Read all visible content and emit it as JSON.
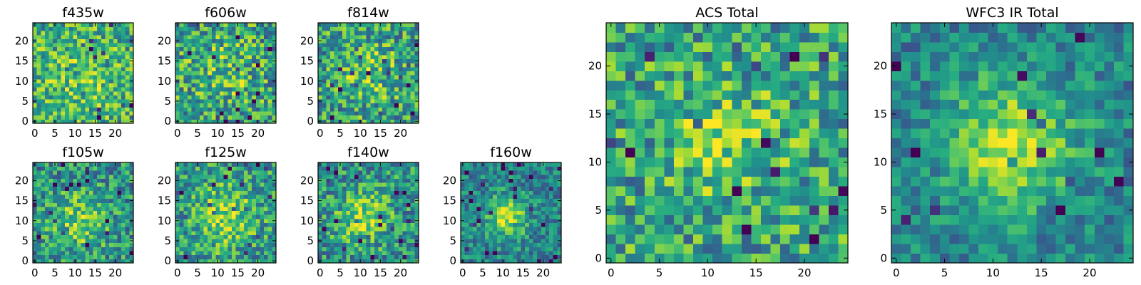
{
  "chart_data": {
    "type": "heatmap",
    "colormap": "viridis",
    "colors": {
      "low": "#440154",
      "mid": "#21918c",
      "high": "#fde725"
    },
    "panels": [
      {
        "title": "f435w",
        "size": "small",
        "grid": [
          25,
          25
        ],
        "xlim": [
          0,
          24
        ],
        "ylim": [
          0,
          24
        ],
        "xticks": [
          0,
          5,
          10,
          15,
          20
        ],
        "yticks": [
          0,
          5,
          10,
          15,
          20
        ],
        "blob": {
          "cx": 12,
          "cy": 11,
          "sigma": 7.0,
          "amplitude": 0.12
        },
        "base": 0.62,
        "noise": 0.3,
        "seed": 435
      },
      {
        "title": "f606w",
        "size": "small",
        "grid": [
          25,
          25
        ],
        "xlim": [
          0,
          24
        ],
        "ylim": [
          0,
          24
        ],
        "xticks": [
          0,
          5,
          10,
          15,
          20
        ],
        "yticks": [
          0,
          5,
          10,
          15,
          20
        ],
        "blob": {
          "cx": 12,
          "cy": 12,
          "sigma": 6.0,
          "amplitude": 0.15
        },
        "base": 0.57,
        "noise": 0.33,
        "seed": 606
      },
      {
        "title": "f814w",
        "size": "small",
        "grid": [
          25,
          25
        ],
        "xlim": [
          0,
          24
        ],
        "ylim": [
          0,
          24
        ],
        "xticks": [
          0,
          5,
          10,
          15,
          20
        ],
        "yticks": [
          0,
          5,
          10,
          15,
          20
        ],
        "blob": {
          "cx": 12,
          "cy": 12,
          "sigma": 6.0,
          "amplitude": 0.2
        },
        "base": 0.55,
        "noise": 0.32,
        "seed": 814
      },
      {
        "title": "f105w",
        "size": "small",
        "grid": [
          25,
          25
        ],
        "xlim": [
          0,
          24
        ],
        "ylim": [
          0,
          24
        ],
        "xticks": [
          0,
          5,
          10,
          15,
          20
        ],
        "yticks": [
          0,
          5,
          10,
          15,
          20
        ],
        "blob": {
          "cx": 11,
          "cy": 10,
          "sigma": 5.0,
          "amplitude": 0.3
        },
        "base": 0.5,
        "noise": 0.28,
        "seed": 105
      },
      {
        "title": "f125w",
        "size": "small",
        "grid": [
          25,
          25
        ],
        "xlim": [
          0,
          24
        ],
        "ylim": [
          0,
          24
        ],
        "xticks": [
          0,
          5,
          10,
          15,
          20
        ],
        "yticks": [
          0,
          5,
          10,
          15,
          20
        ],
        "blob": {
          "cx": 12,
          "cy": 11,
          "sigma": 5.0,
          "amplitude": 0.3
        },
        "base": 0.55,
        "noise": 0.28,
        "seed": 125
      },
      {
        "title": "f140w",
        "size": "small",
        "grid": [
          25,
          25
        ],
        "xlim": [
          0,
          24
        ],
        "ylim": [
          0,
          24
        ],
        "xticks": [
          0,
          5,
          10,
          15,
          20
        ],
        "yticks": [
          0,
          5,
          10,
          15,
          20
        ],
        "blob": {
          "cx": 11,
          "cy": 11,
          "sigma": 5.0,
          "amplitude": 0.32
        },
        "base": 0.5,
        "noise": 0.28,
        "seed": 140
      },
      {
        "title": "f160w",
        "size": "small",
        "grid": [
          25,
          25
        ],
        "xlim": [
          0,
          24
        ],
        "ylim": [
          0,
          24
        ],
        "xticks": [
          0,
          5,
          10,
          15,
          20
        ],
        "yticks": [
          0,
          5,
          10,
          15,
          20
        ],
        "blob": {
          "cx": 11,
          "cy": 11,
          "sigma": 3.5,
          "amplitude": 0.45
        },
        "base": 0.45,
        "noise": 0.22,
        "seed": 160
      },
      {
        "title": "ACS Total",
        "size": "large",
        "grid": [
          25,
          25
        ],
        "xlim": [
          0,
          24
        ],
        "ylim": [
          0,
          24
        ],
        "xticks": [
          0,
          5,
          10,
          15,
          20
        ],
        "yticks": [
          0,
          5,
          10,
          15,
          20
        ],
        "blob": {
          "cx": 12,
          "cy": 12,
          "sigma": 4.0,
          "amplitude": 0.25
        },
        "base": 0.58,
        "noise": 0.3,
        "seed": 777
      },
      {
        "title": "WFC3 IR Total",
        "size": "large",
        "grid": [
          25,
          25
        ],
        "xlim": [
          0,
          24
        ],
        "ylim": [
          0,
          24
        ],
        "xticks": [
          0,
          5,
          10,
          15,
          20
        ],
        "yticks": [
          0,
          5,
          10,
          15,
          20
        ],
        "blob": {
          "cx": 12,
          "cy": 12,
          "sigma": 4.5,
          "amplitude": 0.45
        },
        "base": 0.45,
        "noise": 0.2,
        "seed": 999
      }
    ]
  }
}
